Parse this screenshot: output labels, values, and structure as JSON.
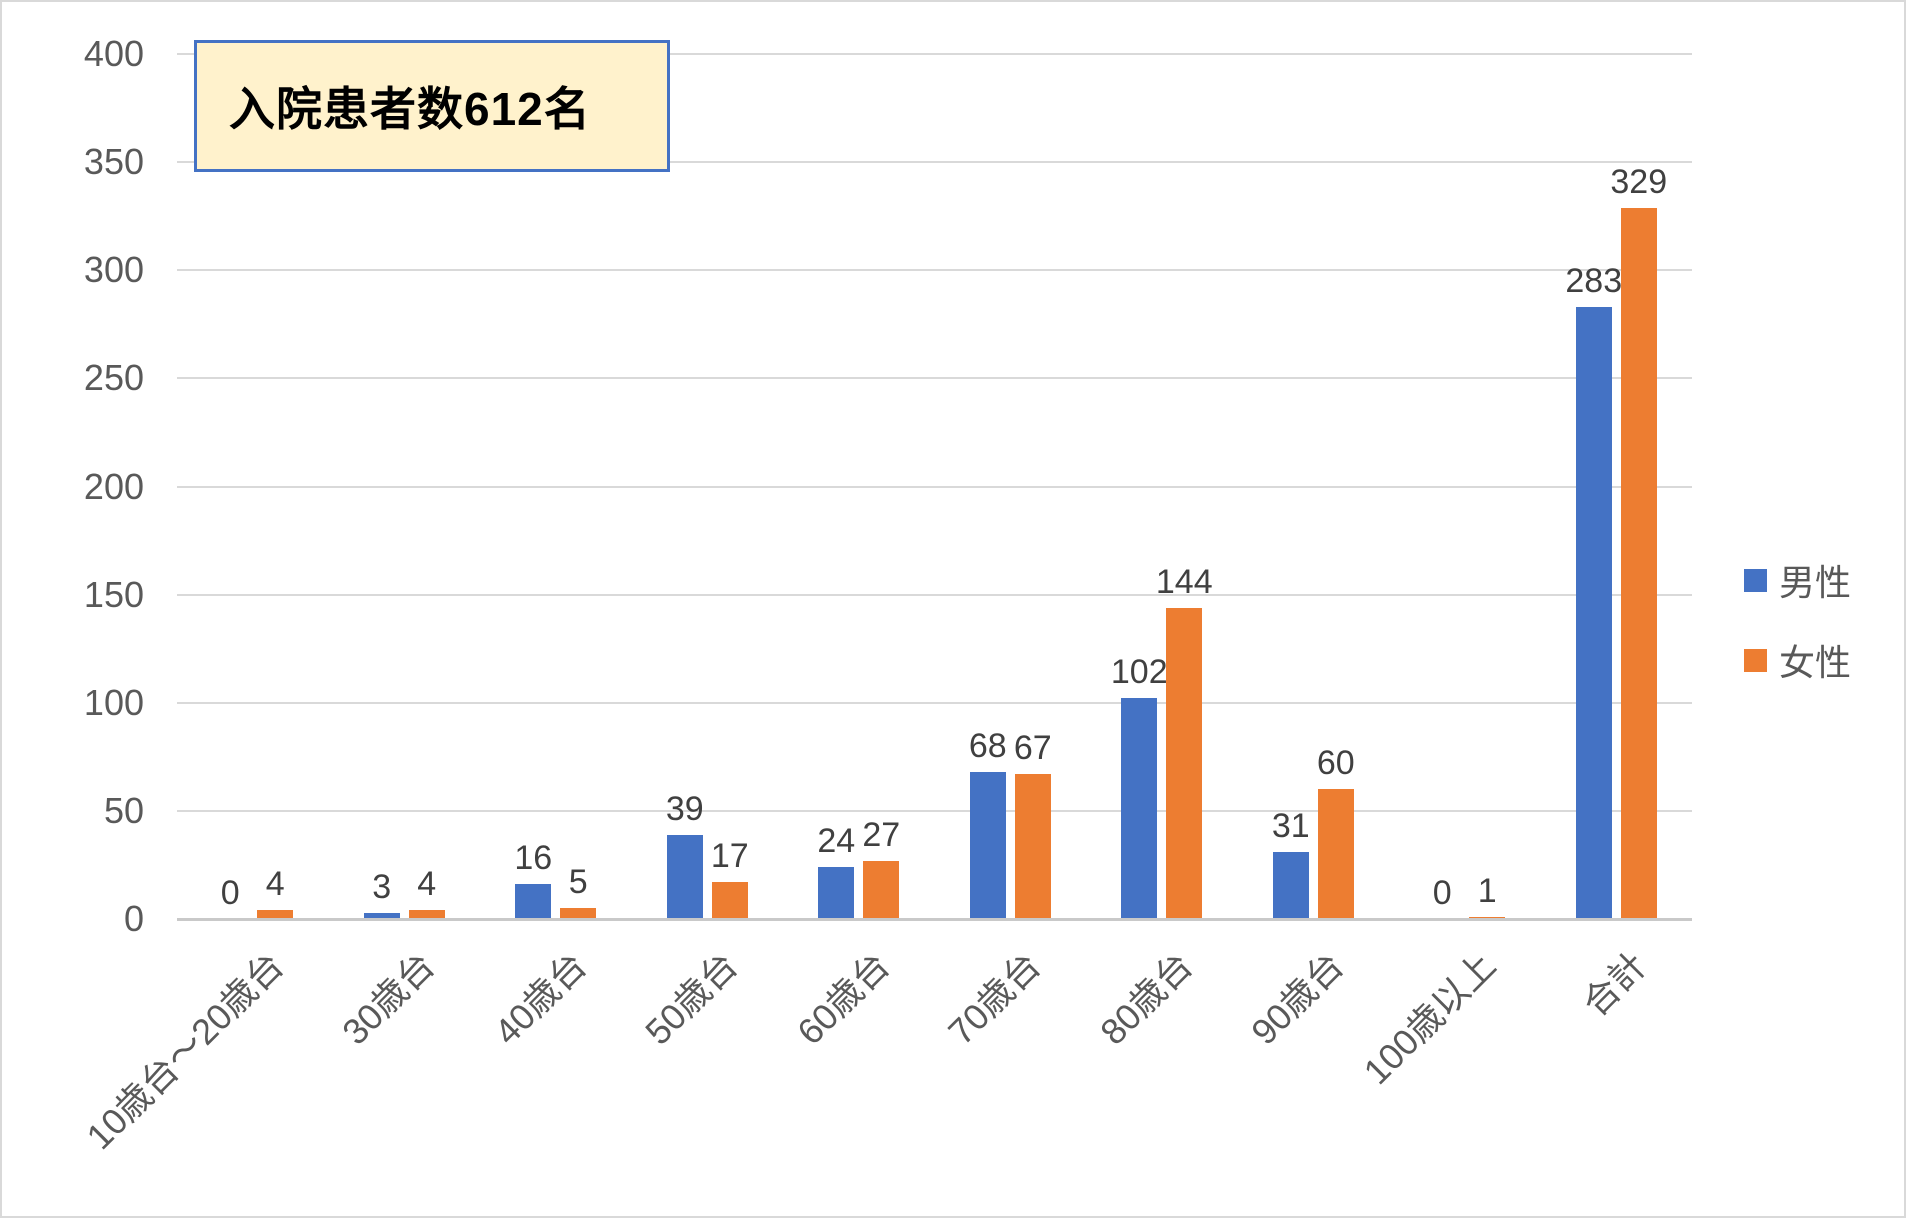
{
  "title": {
    "text": "入院患者数612名"
  },
  "colors": {
    "male": "#4472C4",
    "female": "#ED7D31",
    "gridline": "#D9D9D9",
    "axis_text": "#595959",
    "data_label": "#404040",
    "title_box_fill": "#FFF2CC",
    "title_box_border": "#4472C4"
  },
  "chart_data": {
    "type": "bar",
    "categories": [
      "10歳台～20歳台",
      "30歳台",
      "40歳台",
      "50歳台",
      "60歳台",
      "70歳台",
      "80歳台",
      "90歳台",
      "100歳以上",
      "合計"
    ],
    "series": [
      {
        "name": "男性",
        "color": "#4472C4",
        "values": [
          0,
          3,
          16,
          39,
          24,
          68,
          102,
          31,
          0,
          283
        ]
      },
      {
        "name": "女性",
        "color": "#ED7D31",
        "values": [
          4,
          4,
          5,
          17,
          27,
          67,
          144,
          60,
          1,
          329
        ]
      }
    ],
    "title": "入院患者数612名",
    "xlabel": "",
    "ylabel": "",
    "ylim": [
      0,
      400
    ],
    "yticks": [
      0,
      50,
      100,
      150,
      200,
      250,
      300,
      350,
      400
    ],
    "grid": true,
    "legend_position": "right",
    "data_labels": true
  }
}
